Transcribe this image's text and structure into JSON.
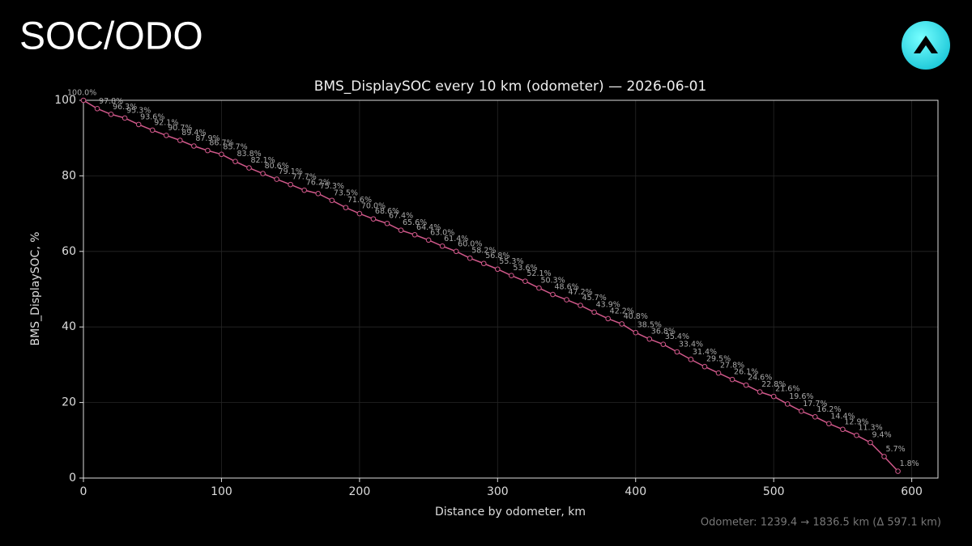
{
  "header": {
    "title": "SOC/ODO"
  },
  "chart_data": {
    "type": "line",
    "title": "BMS_DisplaySOC every 10 km (odometer) — 2026-06-01",
    "x_label": "Distance by odometer, km",
    "y_label": "BMS_DisplaySOC, %",
    "x": [
      0,
      10,
      20,
      30,
      40,
      50,
      60,
      70,
      80,
      90,
      100,
      110,
      120,
      130,
      140,
      150,
      160,
      170,
      180,
      190,
      200,
      210,
      220,
      230,
      240,
      250,
      260,
      270,
      280,
      290,
      300,
      310,
      320,
      330,
      340,
      350,
      360,
      370,
      380,
      390,
      400,
      410,
      420,
      430,
      440,
      450,
      460,
      470,
      480,
      490,
      500,
      510,
      520,
      530,
      540,
      550,
      560,
      570,
      580,
      590
    ],
    "values": [
      100.0,
      97.8,
      96.3,
      95.3,
      93.6,
      92.1,
      90.7,
      89.4,
      87.9,
      86.7,
      85.7,
      83.8,
      82.1,
      80.6,
      79.1,
      77.7,
      76.2,
      75.3,
      73.5,
      71.6,
      70.0,
      68.6,
      67.4,
      65.6,
      64.4,
      63.0,
      61.4,
      60.0,
      58.2,
      56.8,
      55.3,
      53.6,
      52.1,
      50.3,
      48.6,
      47.2,
      45.7,
      43.9,
      42.2,
      40.8,
      38.5,
      36.8,
      35.4,
      33.4,
      31.4,
      29.5,
      27.8,
      26.1,
      24.6,
      22.8,
      21.6,
      19.6,
      17.7,
      16.2,
      14.4,
      12.9,
      11.3,
      9.4,
      5.7,
      1.8
    ],
    "value_labels": [
      "100.0%",
      "97.8%",
      "96.3%",
      "95.3%",
      "93.6%",
      "92.1%",
      "90.7%",
      "89.4%",
      "87.9%",
      "86.7%",
      "85.7%",
      "83.8%",
      "82.1%",
      "80.6%",
      "79.1%",
      "77.7%",
      "76.2%",
      "75.3%",
      "73.5%",
      "71.6%",
      "70.0%",
      "68.6%",
      "67.4%",
      "65.6%",
      "64.4%",
      "63.0%",
      "61.4%",
      "60.0%",
      "58.2%",
      "56.8%",
      "55.3%",
      "53.6%",
      "52.1%",
      "50.3%",
      "48.6%",
      "47.2%",
      "45.7%",
      "43.9%",
      "42.2%",
      "40.8%",
      "38.5%",
      "36.8%",
      "35.4%",
      "33.4%",
      "31.4%",
      "29.5%",
      "27.8%",
      "26.1%",
      "24.6%",
      "22.8%",
      "21.6%",
      "19.6%",
      "17.7%",
      "16.2%",
      "14.4%",
      "12.9%",
      "11.3%",
      "9.4%",
      "5.7%",
      "1.8%"
    ],
    "color": "#d0588a",
    "xlim": [
      0,
      619
    ],
    "ylim": [
      0,
      100
    ],
    "xticks": [
      0,
      100,
      200,
      300,
      400,
      500,
      600
    ],
    "yticks": [
      0,
      20,
      40,
      60,
      80,
      100
    ],
    "grid": true
  },
  "footer": {
    "note": "Odometer: 1239.4 → 1836.5 km (Δ 597.1 km)"
  }
}
